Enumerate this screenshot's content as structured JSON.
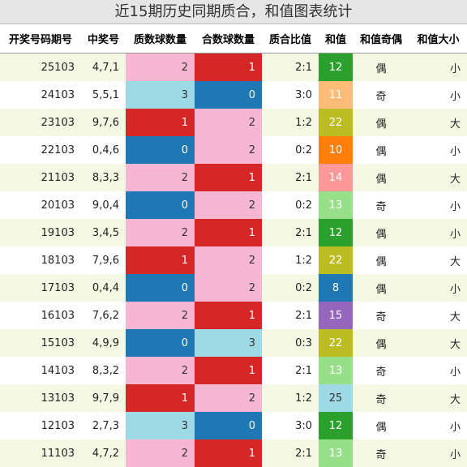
{
  "title": "近15期历史同期质合，和值图表统计",
  "table": {
    "header": [
      "开奖号码期号",
      "中奖号",
      "质数球数量",
      "合数球数量",
      "质合比值",
      "和值",
      "和值奇偶",
      "和值大小"
    ],
    "rows": [
      [
        "25103",
        "4,7,1",
        "2",
        "1",
        "2:1",
        "12",
        "偶",
        "小"
      ],
      [
        "24103",
        "5,5,1",
        "3",
        "0",
        "3:0",
        "11",
        "奇",
        "小"
      ],
      [
        "23103",
        "9,7,6",
        "1",
        "2",
        "1:2",
        "22",
        "偶",
        "大"
      ],
      [
        "22103",
        "0,4,6",
        "0",
        "2",
        "0:2",
        "10",
        "偶",
        "小"
      ],
      [
        "21103",
        "8,3,3",
        "2",
        "1",
        "2:1",
        "14",
        "偶",
        "大"
      ],
      [
        "20103",
        "9,0,4",
        "0",
        "2",
        "0:2",
        "13",
        "奇",
        "小"
      ],
      [
        "19103",
        "3,4,5",
        "2",
        "1",
        "2:1",
        "12",
        "偶",
        "小"
      ],
      [
        "18103",
        "7,9,6",
        "1",
        "2",
        "1:2",
        "22",
        "偶",
        "大"
      ],
      [
        "17103",
        "0,4,4",
        "0",
        "2",
        "0:2",
        "8",
        "偶",
        "小"
      ],
      [
        "16103",
        "7,6,2",
        "2",
        "1",
        "2:1",
        "15",
        "奇",
        "大"
      ],
      [
        "15103",
        "4,9,9",
        "0",
        "3",
        "0:3",
        "22",
        "偶",
        "大"
      ],
      [
        "14103",
        "8,3,2",
        "2",
        "1",
        "2:1",
        "13",
        "奇",
        "小"
      ],
      [
        "13103",
        "9,7,9",
        "1",
        "2",
        "1:2",
        "25",
        "奇",
        "大"
      ],
      [
        "12103",
        "2,7,3",
        "3",
        "0",
        "3:0",
        "12",
        "偶",
        "小"
      ],
      [
        "11103",
        "4,7,2",
        "2",
        "1",
        "2:1",
        "13",
        "奇",
        "小"
      ]
    ],
    "count_colors": {
      "0": "#1f77b4",
      "1": "#d62728",
      "2": "#f7b6d2",
      "3": "#9edae5"
    },
    "sum_colors": {
      "8": "#1f77b4",
      "10": "#ff7f0e",
      "11": "#ffbb78",
      "12": "#2ca02c",
      "13": "#98df8a",
      "14": "#ff9896",
      "15": "#9467bd",
      "22": "#bcbd22",
      "25": "#9edae5"
    }
  }
}
